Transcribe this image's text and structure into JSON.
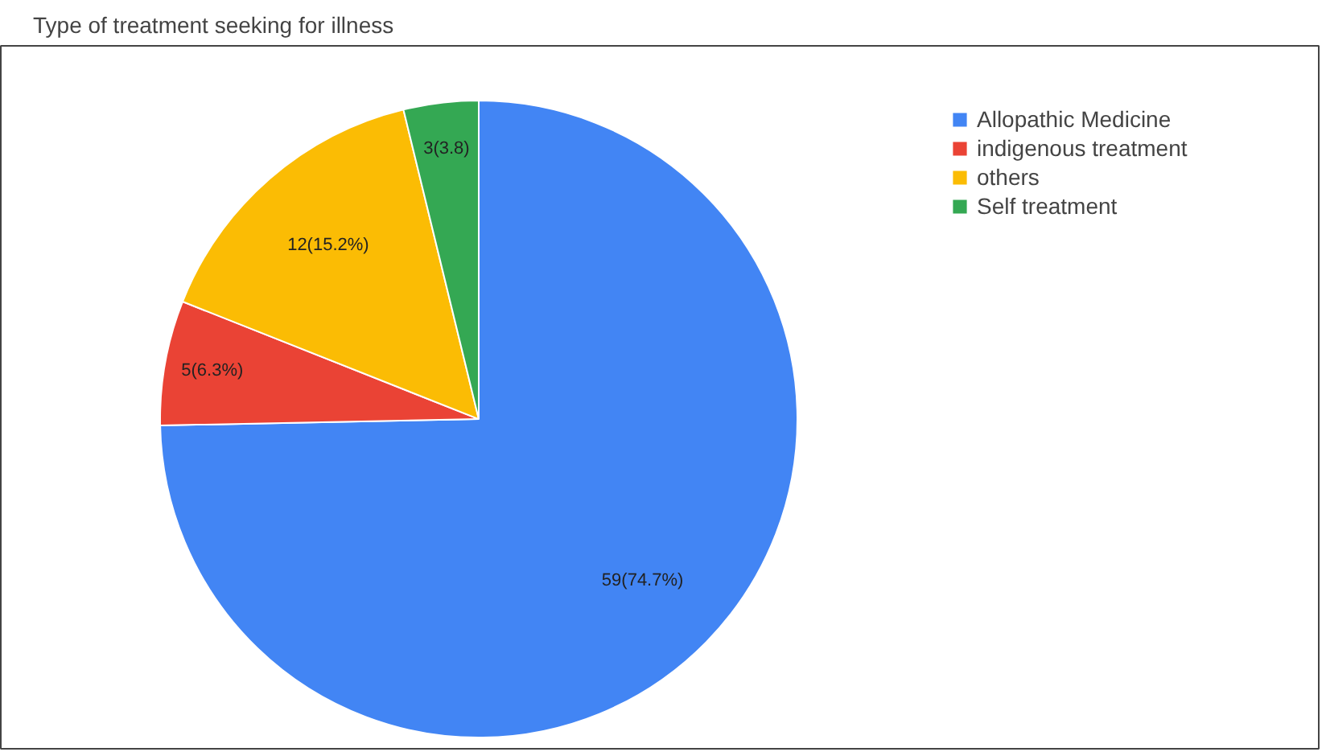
{
  "chart_data": {
    "type": "pie",
    "title": "Type of treatment seeking for illness",
    "categories": [
      "Allopathic Medicine",
      "indigenous treatment",
      "others",
      "Self treatment"
    ],
    "values": [
      59,
      5,
      12,
      3
    ],
    "colors": [
      "#4285f4",
      "#ea4335",
      "#fbbc04",
      "#34a853"
    ],
    "value_labels": [
      "59(74.7%)",
      "5(6.3%)",
      "12(15.2%)",
      "3(3.8)"
    ],
    "legend": "top right"
  }
}
